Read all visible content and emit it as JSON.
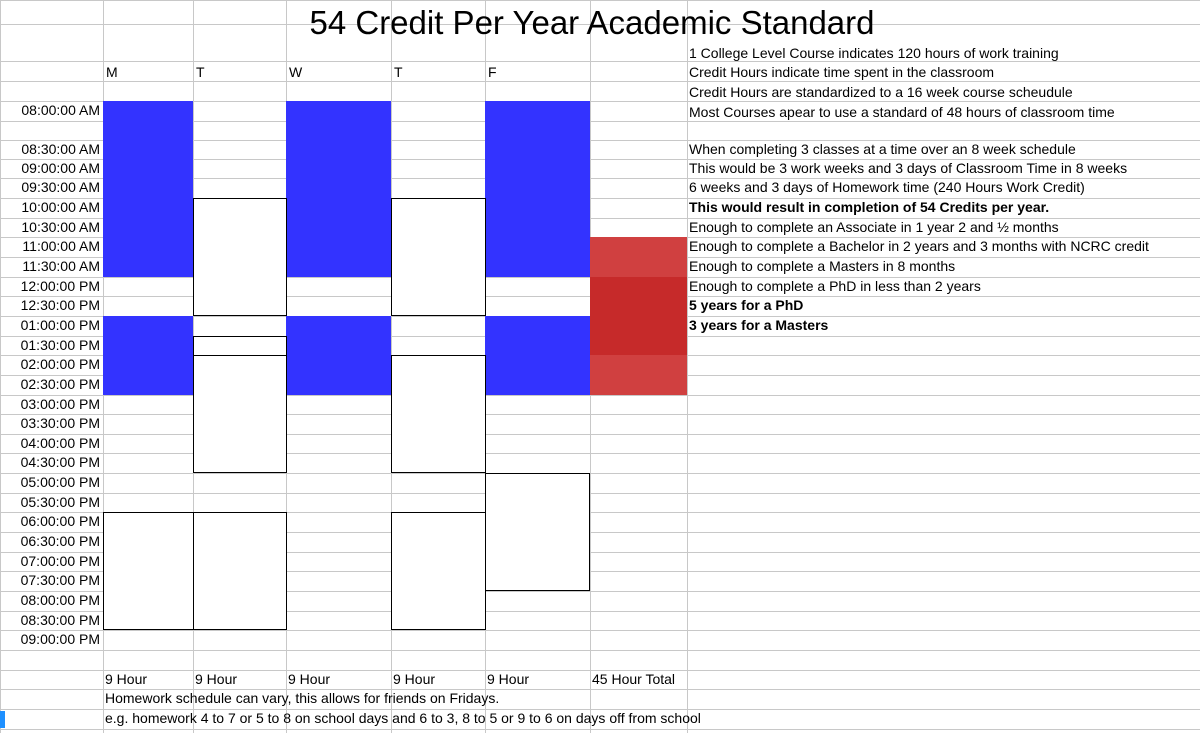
{
  "title": "54 Credit Per Year Academic Standard",
  "days": [
    "M",
    "T",
    "W",
    "T",
    "F"
  ],
  "times": [
    "08:00:00 AM",
    "08:30:00 AM",
    "09:00:00 AM",
    "09:30:00 AM",
    "10:00:00 AM",
    "10:30:00 AM",
    "11:00:00 AM",
    "11:30:00 AM",
    "12:00:00 PM",
    "12:30:00 PM",
    "01:00:00 PM",
    "01:30:00 PM",
    "02:00:00 PM",
    "02:30:00 PM",
    "03:00:00 PM",
    "03:30:00 PM",
    "04:00:00 PM",
    "04:30:00 PM",
    "05:00:00 PM",
    "05:30:00 PM",
    "06:00:00 PM",
    "06:30:00 PM",
    "07:00:00 PM",
    "07:30:00 PM",
    "08:00:00 PM",
    "08:30:00 PM",
    "09:00:00 PM"
  ],
  "notes": [
    {
      "text": "1 College Level Course indicates 120 hours of work training",
      "bold": false
    },
    {
      "text": "Credit Hours indicate time spent in the classroom",
      "bold": false
    },
    {
      "text": "Credit Hours are standardized to a 16 week course scheudule",
      "bold": false
    },
    {
      "text": "Most Courses apear to use a standard of 48 hours of classroom time",
      "bold": false
    },
    {
      "text": "When completing 3 classes at a time over an 8 week schedule",
      "bold": false
    },
    {
      "text": "This would be 3 work weeks and 3 days of Classroom Time in 8 weeks",
      "bold": false
    },
    {
      "text": "6 weeks and 3 days of Homework time (240 Hours Work Credit)",
      "bold": false
    },
    {
      "text": "This would result in completion of 54 Credits per year.",
      "bold": true
    },
    {
      "text": "Enough to complete an Associate in 1 year 2 and ½ months",
      "bold": false
    },
    {
      "text": "Enough to complete a Bachelor in 2 years and 3 months with NCRC credit",
      "bold": false
    },
    {
      "text": "Enough to complete a Masters in 8 months",
      "bold": false
    },
    {
      "text": "Enough to complete a PhD in less than 2 years",
      "bold": false
    },
    {
      "text": "5 years for a PhD",
      "bold": true
    },
    {
      "text": "3 years for a Masters",
      "bold": true
    }
  ],
  "totals": [
    "9 Hour",
    "9 Hour",
    "9 Hour",
    "9 Hour",
    "9 Hour",
    "45 Hour Total"
  ],
  "footer": [
    "Homework schedule can vary, this allows for friends on Fridays.",
    "e.g. homework 4 to 7 or 5 to 8 on school days and 6 to 3, 8 to 5 or 9 to 6 on days off from school"
  ],
  "colors": {
    "class_block": "#3333ff",
    "summary_red_light": "#d04040",
    "summary_red_dark": "#c62a2a"
  }
}
